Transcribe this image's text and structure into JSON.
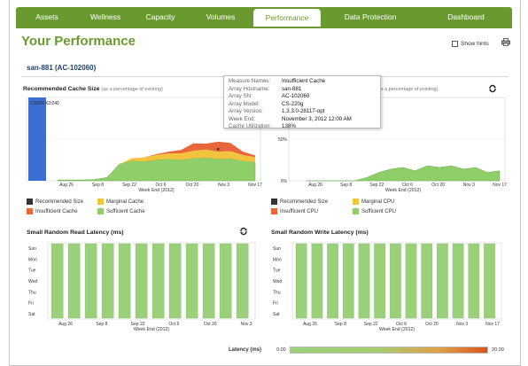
{
  "nav": {
    "tabs": [
      {
        "label": "Assets",
        "active": false
      },
      {
        "label": "Wellness",
        "active": false
      },
      {
        "label": "Capacity",
        "active": false
      },
      {
        "label": "Volumes",
        "active": false
      },
      {
        "label": "Performance",
        "active": true
      },
      {
        "label": "Data Protection",
        "active": false
      },
      {
        "label": "Dashboard",
        "active": false
      }
    ]
  },
  "page": {
    "title": "Your Performance",
    "show_hints_label": "Show hints",
    "show_hints_checked": false,
    "array_name": "san-881 (AC-102060)"
  },
  "colors": {
    "brand_green": "#6a9a2f",
    "recommended": "#333333",
    "insufficient": "#e8663a",
    "marginal": "#f2c43d",
    "sufficient": "#8fcf6a",
    "selected_bar": "#3b6fd3"
  },
  "cache_chart": {
    "title": "Recommended Cache Size",
    "subtitle": "(as a percentage of existing)",
    "selected_bar_label": "CS220-X2/240",
    "x_axis_label": "Week End (2012)",
    "chart_data": {
      "type": "area",
      "y_ticks": [
        "200%",
        "100%",
        "0%"
      ],
      "ylim": [
        0,
        200
      ],
      "x_tick_labels": [
        "Aug 26",
        "Sep 8",
        "Sep 22",
        "Oct 6",
        "Oct 20",
        "Nov 3",
        "Nov 17"
      ],
      "x": [
        0,
        1,
        2,
        3,
        4,
        5,
        6,
        7,
        8,
        9,
        10,
        11,
        12,
        13,
        14,
        15,
        16
      ],
      "series": [
        {
          "name": "Sufficient Cache",
          "values": [
            2,
            2,
            2,
            3,
            8,
            40,
            48,
            46,
            50,
            52,
            50,
            54,
            55,
            52,
            53,
            48,
            45
          ]
        },
        {
          "name": "Marginal Cache",
          "values": [
            0,
            0,
            0,
            0,
            0,
            0,
            6,
            10,
            12,
            14,
            16,
            18,
            20,
            18,
            18,
            14,
            12
          ]
        },
        {
          "name": "Insufficient Cache",
          "values": [
            0,
            0,
            0,
            0,
            0,
            0,
            0,
            0,
            2,
            4,
            8,
            18,
            14,
            24,
            20,
            8,
            4
          ]
        }
      ],
      "recommended_size_marker": {
        "x": 13,
        "y": 76
      }
    },
    "legend": [
      "Recommended Size",
      "Marginal Cache",
      "Insufficient Cache",
      "Sufficient Cache"
    ]
  },
  "cpu_chart": {
    "subtitle": "(as a percentage of existing)",
    "x_axis_label": "Week End (2012)",
    "chart_data": {
      "type": "area",
      "y_ticks": [
        "50%",
        "0%"
      ],
      "ylim": [
        0,
        100
      ],
      "x_tick_labels": [
        "Aug 26",
        "Sep 8",
        "Sep 22",
        "Oct 6",
        "Oct 20",
        "Nov 3",
        "Nov 17"
      ],
      "x": [
        0,
        1,
        2,
        3,
        4,
        5,
        6,
        7,
        8,
        9,
        10,
        11,
        12,
        13,
        14,
        15,
        16
      ],
      "series": [
        {
          "name": "Sufficient CPU",
          "values": [
            0,
            0,
            0,
            0,
            0,
            4,
            10,
            14,
            16,
            12,
            18,
            16,
            18,
            14,
            16,
            10,
            12
          ]
        }
      ]
    },
    "legend": [
      "Recommended Size",
      "Marginal CPU",
      "Insufficient CPU",
      "Sufficient CPU"
    ]
  },
  "tooltip": {
    "rows": [
      {
        "k": "Measure Names:",
        "v": "Insufficient Cache"
      },
      {
        "k": "Array Hostname:",
        "v": "san-881"
      },
      {
        "k": "Array SN:",
        "v": "AC-102060"
      },
      {
        "k": "Array Model:",
        "v": "CS-220g"
      },
      {
        "k": "Array Version:",
        "v": "1.3.3.0-28117-opt"
      },
      {
        "k": "Week End:",
        "v": "November 3, 2012 12:00 AM"
      },
      {
        "k": "Cache Utilization:",
        "v": "138%"
      }
    ]
  },
  "read_latency": {
    "title": "Small Random Read Latency (ms)",
    "x_axis_label": "Week End (2012)",
    "chart_data": {
      "type": "heatmap",
      "rows": [
        "Sun",
        "Mon",
        "Tue",
        "Wed",
        "Thu",
        "Fri",
        "Sat"
      ],
      "x_tick_labels": [
        "Aug 26",
        "Sep 8",
        "Sep 22",
        "Oct 6",
        "Oct 20",
        "Nov 3"
      ],
      "columns": 12
    }
  },
  "write_latency": {
    "title": "Small Random Write Latency (ms)",
    "x_axis_label": "Week End (2012)",
    "chart_data": {
      "type": "heatmap",
      "rows": [
        "Sun",
        "Mon",
        "Tue",
        "Wed",
        "Thu",
        "Fri",
        "Sat"
      ],
      "x_tick_labels": [
        "Aug 26",
        "Sep 8",
        "Sep 22",
        "Oct 6",
        "Oct 20",
        "Nov 3",
        "Nov 17"
      ],
      "columns": 13
    }
  },
  "latency_scale": {
    "label": "Latency (ms)",
    "min": "0.00",
    "max": "20.00"
  }
}
